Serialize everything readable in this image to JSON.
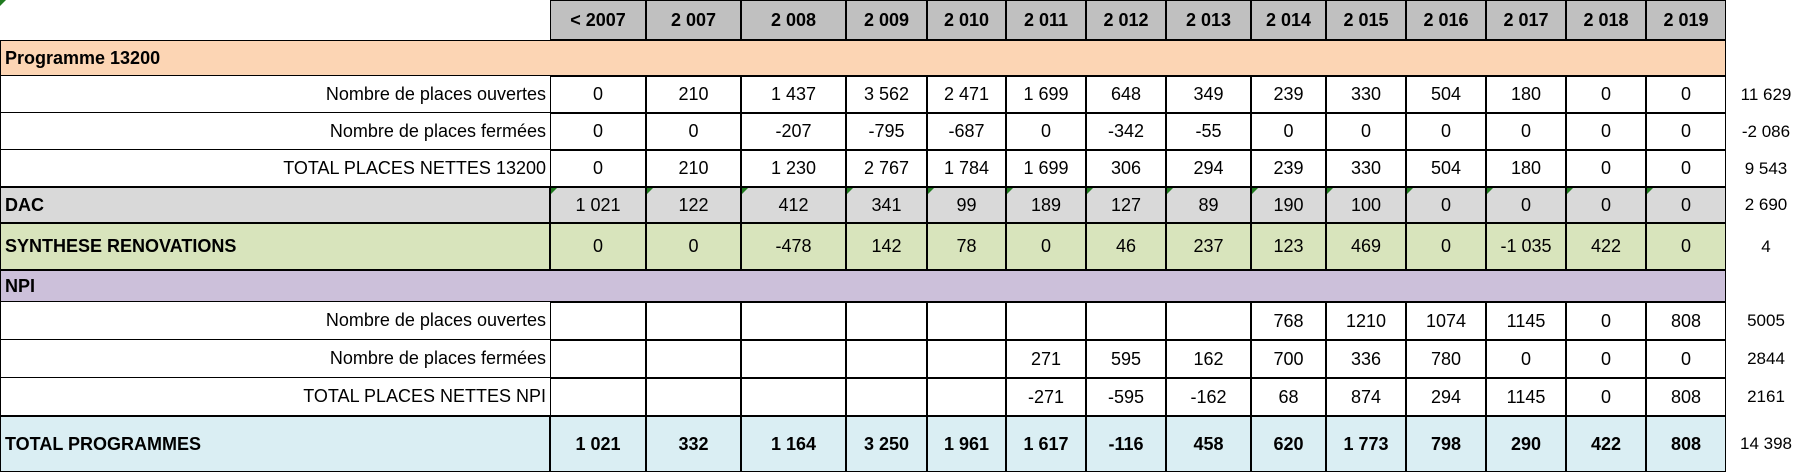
{
  "headers": [
    "< 2007",
    "2 007",
    "2 008",
    "2 009",
    "2 010",
    "2 011",
    "2 012",
    "2 013",
    "2 014",
    "2 015",
    "2 016",
    "2 017",
    "2 018",
    "2 019"
  ],
  "sections": {
    "prog13200": "Programme 13200",
    "dac": "DAC",
    "synthese": "SYNTHESE RENOVATIONS",
    "npi": "NPI",
    "total": "TOTAL PROGRAMMES"
  },
  "rows": {
    "p_open": {
      "label": "Nombre de places ouvertes",
      "values": [
        "0",
        "210",
        "1 437",
        "3 562",
        "2 471",
        "1 699",
        "648",
        "349",
        "239",
        "330",
        "504",
        "180",
        "0",
        "0"
      ],
      "total": "11 629"
    },
    "p_closed": {
      "label": "Nombre de places fermées",
      "values": [
        "0",
        "0",
        "-207",
        "-795",
        "-687",
        "0",
        "-342",
        "-55",
        "0",
        "0",
        "0",
        "0",
        "0",
        "0"
      ],
      "total": "-2 086"
    },
    "p_net": {
      "label": "TOTAL PLACES NETTES 13200",
      "values": [
        "0",
        "210",
        "1 230",
        "2 767",
        "1 784",
        "1 699",
        "306",
        "294",
        "239",
        "330",
        "504",
        "180",
        "0",
        "0"
      ],
      "total": "9 543"
    },
    "dac": {
      "values": [
        "1 021",
        "122",
        "412",
        "341",
        "99",
        "189",
        "127",
        "89",
        "190",
        "100",
        "0",
        "0",
        "0",
        "0"
      ],
      "total": "2 690"
    },
    "synthese": {
      "values": [
        "0",
        "0",
        "-478",
        "142",
        "78",
        "0",
        "46",
        "237",
        "123",
        "469",
        "0",
        "-1 035",
        "422",
        "0"
      ],
      "total": "4"
    },
    "n_open": {
      "label": "Nombre de places ouvertes",
      "values": [
        "",
        "",
        "",
        "",
        "",
        "",
        "",
        "",
        "768",
        "1210",
        "1074",
        "1145",
        "0",
        "808"
      ],
      "total": "5005"
    },
    "n_closed": {
      "label": "Nombre de places fermées",
      "values": [
        "",
        "",
        "",
        "",
        "",
        "271",
        "595",
        "162",
        "700",
        "336",
        "780",
        "0",
        "0",
        "0"
      ],
      "total": "2844"
    },
    "n_net": {
      "label": "TOTAL PLACES  NETTES NPI",
      "values": [
        "",
        "",
        "",
        "",
        "",
        "-271",
        "-595",
        "-162",
        "68",
        "874",
        "294",
        "1145",
        "0",
        "808"
      ],
      "total": "2161"
    },
    "total": {
      "values": [
        "1 021",
        "332",
        "1 164",
        "3 250",
        "1 961",
        "1 617",
        "-116",
        "458",
        "620",
        "1 773",
        "798",
        "290",
        "422",
        "808"
      ],
      "total": "14 398"
    }
  },
  "colors": {
    "header": "#c0c0c0",
    "programme": "#fcd5b4",
    "dac": "#d9d9d9",
    "synthese": "#d8e4bc",
    "npi": "#ccc0da",
    "total": "#daeef3",
    "comment_marker": "#1f7a1f"
  }
}
